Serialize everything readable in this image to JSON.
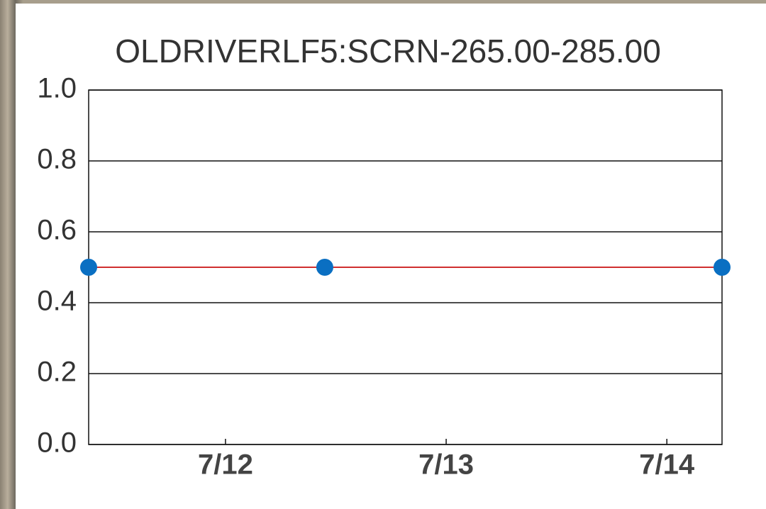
{
  "chart_data": {
    "type": "line",
    "title": "OLDRIVERLF5:SCRN-265.00-285.00",
    "x": [
      11.38,
      12.45,
      14.25
    ],
    "values": [
      0.5,
      0.5,
      0.5
    ],
    "color": "#0a6fc2",
    "line_color": "#d03030",
    "xlim": [
      11.38,
      14.25
    ],
    "xticks": [
      {
        "value": 12,
        "label": "7/12"
      },
      {
        "value": 13,
        "label": "7/13"
      },
      {
        "value": 14,
        "label": "7/14"
      }
    ],
    "ylim": [
      0,
      1
    ],
    "yticks": [
      {
        "value": 0,
        "label": "0.0"
      },
      0.2,
      0.4,
      0.6,
      0.8,
      {
        "value": 1,
        "label": "1.0"
      }
    ],
    "grid": true
  }
}
